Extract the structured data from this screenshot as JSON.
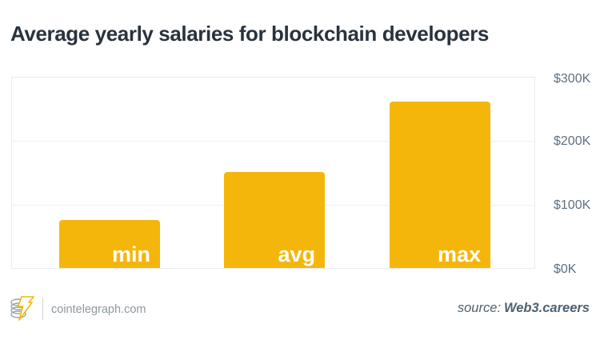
{
  "title": "Average yearly salaries for blockchain developers",
  "chart_data": {
    "type": "bar",
    "categories": [
      "min",
      "avg",
      "max"
    ],
    "values": [
      75,
      150,
      260
    ],
    "value_unit": "thousand USD per year",
    "title": "Average yearly salaries for blockchain developers",
    "xlabel": "",
    "ylabel": "",
    "yticks": [
      "$300K",
      "$200K",
      "$100K",
      "$0K"
    ],
    "ylim": [
      0,
      300
    ],
    "grid": true,
    "legend": "none",
    "bar_color": "#F5B60C",
    "bar_label_color": "#FFFFFF"
  },
  "footer": {
    "site": "cointelegraph.com",
    "logo": "cointelegraph-coin-stack-lightning",
    "source_prefix": "source:",
    "source_name": "Web3.careers"
  },
  "colors": {
    "title_text": "#29333E",
    "axis_label": "#5E7080",
    "gridline": "#EDF1F6",
    "plot_border": "#E7ECF2",
    "footer_site_text": "#8E979E",
    "source_text": "#4E6170",
    "background": "#FFFFFF"
  }
}
